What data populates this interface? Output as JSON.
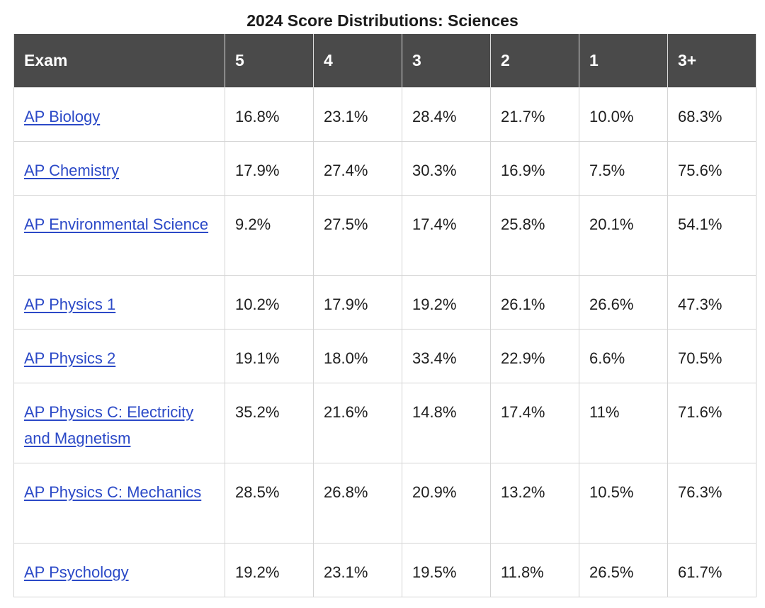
{
  "title": "2024 Score Distributions: Sciences",
  "table": {
    "headers": [
      "Exam",
      "5",
      "4",
      "3",
      "2",
      "1",
      "3+"
    ],
    "rows": [
      {
        "exam": "AP Biology",
        "values": [
          "16.8%",
          "23.1%",
          "28.4%",
          "21.7%",
          "10.0%",
          "68.3%"
        ]
      },
      {
        "exam": "AP Chemistry",
        "values": [
          "17.9%",
          "27.4%",
          "30.3%",
          "16.9%",
          "7.5%",
          "75.6%"
        ]
      },
      {
        "exam": "AP Environmental Science",
        "values": [
          "9.2%",
          "27.5%",
          "17.4%",
          "25.8%",
          "20.1%",
          "54.1%"
        ]
      },
      {
        "exam": "AP Physics 1",
        "values": [
          "10.2%",
          "17.9%",
          "19.2%",
          "26.1%",
          "26.6%",
          "47.3%"
        ]
      },
      {
        "exam": "AP Physics 2",
        "values": [
          "19.1%",
          "18.0%",
          "33.4%",
          "22.9%",
          "6.6%",
          "70.5%"
        ]
      },
      {
        "exam": "AP Physics C: Electricity and Magnetism",
        "values": [
          "35.2%",
          "21.6%",
          "14.8%",
          "17.4%",
          "11%",
          "71.6%"
        ]
      },
      {
        "exam": "AP Physics C: Mechanics",
        "values": [
          "28.5%",
          "26.8%",
          "20.9%",
          "13.2%",
          "10.5%",
          "76.3%"
        ]
      },
      {
        "exam": "AP Psychology",
        "values": [
          "19.2%",
          "23.1%",
          "19.5%",
          "11.8%",
          "26.5%",
          "61.7%"
        ]
      }
    ]
  },
  "colors": {
    "header_bg": "#4a4a4a",
    "header_text": "#ffffff",
    "link": "#2b49c7",
    "border": "#d4d4d4"
  }
}
